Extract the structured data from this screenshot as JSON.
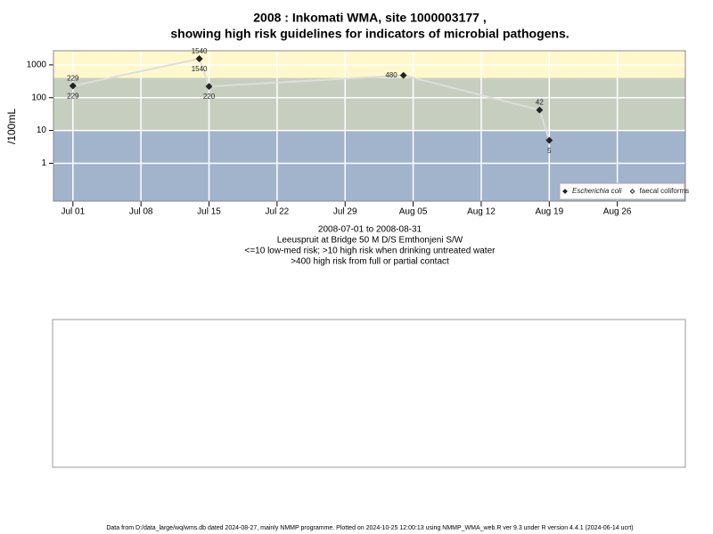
{
  "chart_data": {
    "type": "line",
    "title": "2008 : Inkomati WMA, site 1000003177 ,",
    "subtitle": "showing high risk guidelines for indicators of microbial pathogens.",
    "y_label": "/100mL",
    "notes": [
      "2008-07-01 to 2008-08-31",
      "Leeuspruit at Bridge 50 M D/S Emthonjeni S/W",
      "<=10 low-med risk; >10 high risk when drinking untreated water",
      ">400 high risk from full or partial contact"
    ],
    "footer": "Data from D:/data_large/wq/wms.db dated 2024-08-27, mainly NMMP programme. Plotted on 2024-10-25 12:00:13 using NMMP_WMA_web.R ver 9.3 under R version 4.4.1 (2024-06-14 ucrt)",
    "x": [
      "2008-07-01",
      "2008-07-14",
      "2008-07-15",
      "2008-08-04",
      "2008-08-18",
      "2008-08-19"
    ],
    "series": [
      {
        "name": "Escherichia coli",
        "color": "#222222",
        "line_color": "#dddddd",
        "values": [
          229,
          1540,
          220,
          480,
          42,
          5
        ]
      },
      {
        "name": "faecal coliforms",
        "color": "#222222",
        "values": [
          229,
          1540,
          null,
          null,
          null,
          null
        ]
      }
    ],
    "bands": [
      {
        "lower": 400,
        "color": "#fff8cc"
      },
      {
        "lower": 10,
        "upper": 400,
        "color": "#c6cfbf"
      },
      {
        "upper": 10,
        "color": "#a2b3cc"
      }
    ],
    "xlim": [
      "2008-06-29",
      "2008-09-02"
    ],
    "xticks": [
      {
        "value": "2008-07-01",
        "label": "Jul 01"
      },
      {
        "value": "2008-07-08",
        "label": "Jul 08"
      },
      {
        "value": "2008-07-15",
        "label": "Jul 15"
      },
      {
        "value": "2008-07-22",
        "label": "Jul 22"
      },
      {
        "value": "2008-07-29",
        "label": "Jul 29"
      },
      {
        "value": "2008-08-05",
        "label": "Aug 05"
      },
      {
        "value": "2008-08-12",
        "label": "Aug 12"
      },
      {
        "value": "2008-08-19",
        "label": "Aug 19"
      },
      {
        "value": "2008-08-26",
        "label": "Aug 26"
      }
    ],
    "ylim": [
      0.07,
      2700
    ],
    "yticks": [
      1,
      10,
      100,
      1000
    ],
    "log_y": true,
    "grid": true,
    "legend": "bottom-right"
  }
}
